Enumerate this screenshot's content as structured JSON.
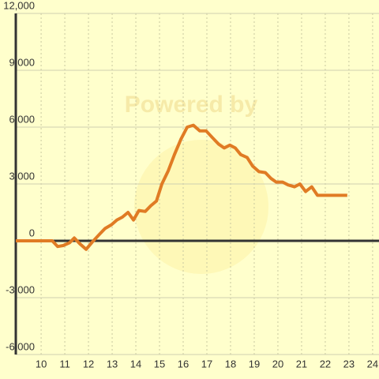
{
  "chart_data": {
    "type": "line",
    "watermark": "Powered by",
    "x": [
      8.93,
      10.47,
      10.7,
      10.93,
      11.2,
      11.4,
      11.63,
      11.9,
      12.17,
      12.43,
      12.7,
      12.97,
      13.2,
      13.43,
      13.67,
      13.9,
      14.13,
      14.4,
      14.63,
      14.87,
      15.1,
      15.37,
      15.63,
      15.9,
      16.17,
      16.43,
      16.7,
      16.97,
      17.23,
      17.5,
      17.73,
      17.97,
      18.2,
      18.43,
      18.7,
      18.93,
      19.2,
      19.47,
      19.7,
      19.93,
      20.2,
      20.43,
      20.7,
      20.93,
      21.17,
      21.43,
      21.67,
      22.93
    ],
    "series": [
      {
        "color": "#e07b24",
        "values": [
          0,
          0,
          -300,
          -250,
          -100,
          150,
          -150,
          -450,
          -50,
          300,
          650,
          850,
          1100,
          1250,
          1500,
          1100,
          1600,
          1550,
          1850,
          2100,
          3000,
          3700,
          4550,
          5350,
          6000,
          6100,
          5800,
          5800,
          5450,
          5100,
          4900,
          5050,
          4900,
          4550,
          4400,
          3950,
          3650,
          3600,
          3300,
          3100,
          3100,
          2950,
          2850,
          3000,
          2600,
          2850,
          2400,
          2400
        ]
      }
    ],
    "xlim": [
      8.93,
      24.27
    ],
    "xticks": [
      10,
      11,
      12,
      13,
      14,
      15,
      16,
      17,
      18,
      19,
      20,
      21,
      22,
      23,
      24
    ],
    "ylim": [
      -6000,
      12000
    ],
    "yticks": [
      {
        "value": -6000,
        "label": "-6,000"
      },
      {
        "value": -3000,
        "label": "-3,000"
      },
      0,
      {
        "value": 3000,
        "label": "3,000"
      },
      {
        "value": 6000,
        "label": "6,000"
      },
      {
        "value": 9000,
        "label": "9,000"
      },
      {
        "value": 12000,
        "label": "12,000"
      }
    ],
    "grid": true
  }
}
